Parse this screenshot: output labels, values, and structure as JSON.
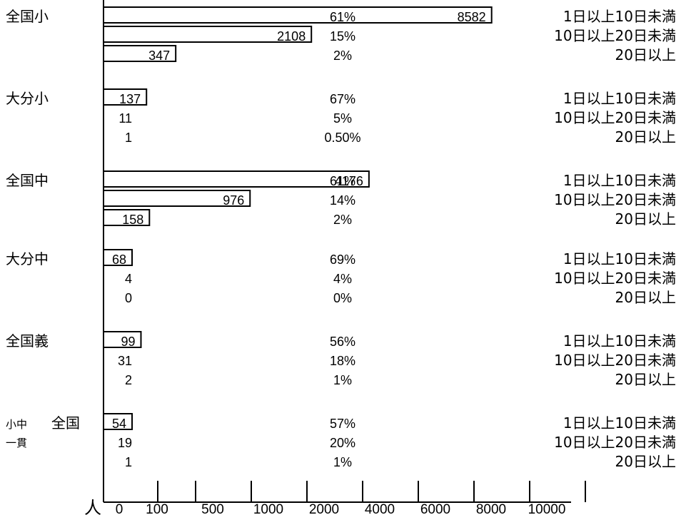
{
  "chart_data": {
    "type": "bar",
    "orientation": "horizontal",
    "unit_label": "人",
    "x_ticks": [
      "0",
      "100",
      "500",
      "1000",
      "2000",
      "4000",
      "6000",
      "8000",
      "10000"
    ],
    "categories": [
      "1日以上10日未満",
      "10日以上20日未満",
      "20日以上"
    ],
    "groups": [
      {
        "label": "全国小",
        "rows": [
          {
            "category": "1日以上10日未満",
            "value": 8582,
            "value_label": "8582",
            "percent_label": "61%"
          },
          {
            "category": "10日以上20日未満",
            "value": 2108,
            "value_label": "2108",
            "percent_label": "15%"
          },
          {
            "category": "20日以上",
            "value": 347,
            "value_label": "347",
            "percent_label": "2%"
          }
        ]
      },
      {
        "label": "大分小",
        "rows": [
          {
            "category": "1日以上10日未満",
            "value": 137,
            "value_label": "137",
            "percent_label": "67%"
          },
          {
            "category": "10日以上20日未満",
            "value": 11,
            "value_label": "11",
            "percent_label": "5%"
          },
          {
            "category": "20日以上",
            "value": 1,
            "value_label": "1",
            "percent_label": "0.50%"
          }
        ]
      },
      {
        "label": "全国中",
        "rows": [
          {
            "category": "1日以上10日未満",
            "value": 4176,
            "value_label": "4176",
            "percent_label": "61%"
          },
          {
            "category": "10日以上20日未満",
            "value": 976,
            "value_label": "976",
            "percent_label": "14%"
          },
          {
            "category": "20日以上",
            "value": 158,
            "value_label": "158",
            "percent_label": "2%"
          }
        ]
      },
      {
        "label": "大分中",
        "rows": [
          {
            "category": "1日以上10日未満",
            "value": 68,
            "value_label": "68",
            "percent_label": "69%"
          },
          {
            "category": "10日以上20日未満",
            "value": 4,
            "value_label": "4",
            "percent_label": "4%"
          },
          {
            "category": "20日以上",
            "value": 0,
            "value_label": "0",
            "percent_label": "0%"
          }
        ]
      },
      {
        "label": "全国義",
        "rows": [
          {
            "category": "1日以上10日未満",
            "value": 99,
            "value_label": "99",
            "percent_label": "56%"
          },
          {
            "category": "10日以上20日未満",
            "value": 31,
            "value_label": "31",
            "percent_label": "18%"
          },
          {
            "category": "20日以上",
            "value": 2,
            "value_label": "2",
            "percent_label": "1%"
          }
        ]
      },
      {
        "label": "全国",
        "sublabels": [
          "小中",
          "一貫"
        ],
        "rows": [
          {
            "category": "1日以上10日未満",
            "value": 54,
            "value_label": "54",
            "percent_label": "57%"
          },
          {
            "category": "10日以上20日未満",
            "value": 19,
            "value_label": "19",
            "percent_label": "20%"
          },
          {
            "category": "20日以上",
            "value": 1,
            "value_label": "1",
            "percent_label": "1%"
          }
        ]
      }
    ]
  }
}
